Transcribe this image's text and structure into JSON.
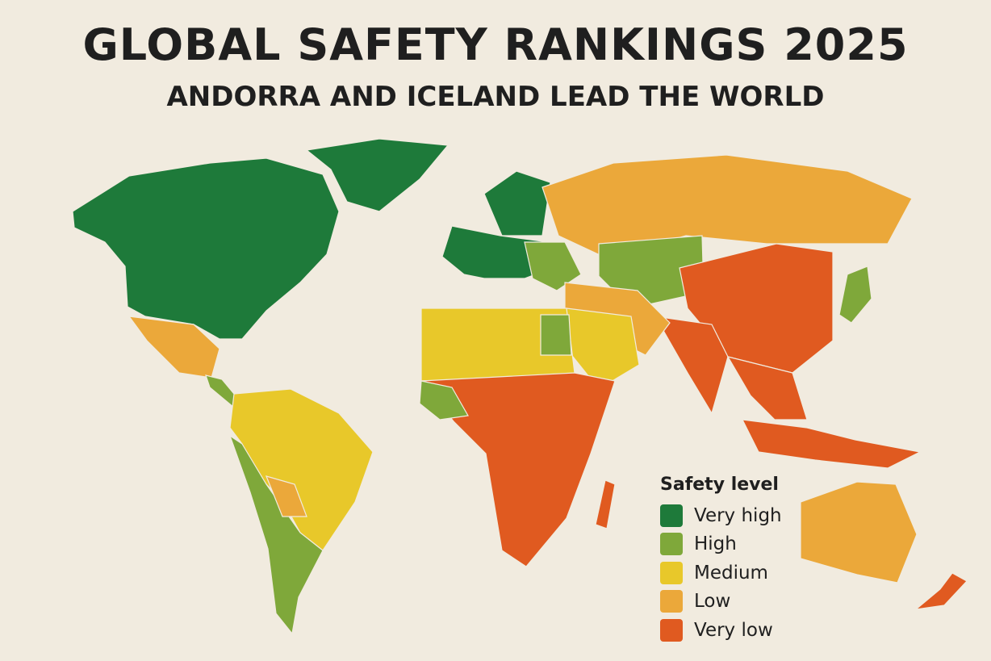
{
  "title": "GLOBAL SAFETY RANKINGS 2025",
  "subtitle": "ANDORRA AND ICELAND LEAD THE WORLD",
  "legend": {
    "title": "Safety level",
    "items": [
      {
        "label": "Very high",
        "color": "#1e7a3a"
      },
      {
        "label": "High",
        "color": "#7fa83a"
      },
      {
        "label": "Medium",
        "color": "#e8c82a"
      },
      {
        "label": "Low",
        "color": "#eba83a"
      },
      {
        "label": "Very low",
        "color": "#e05a20"
      }
    ]
  },
  "background": "#f1ebdf"
}
